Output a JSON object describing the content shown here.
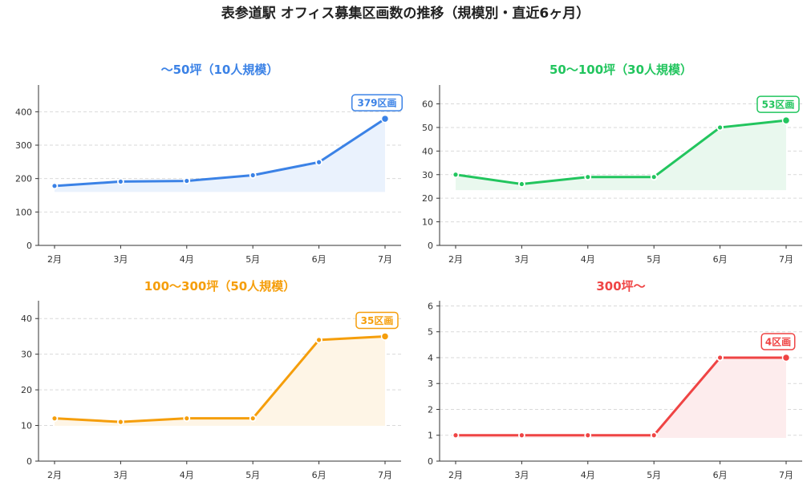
{
  "title": "表参道駅 オフィス募集区画数の推移（規模別・直近6ヶ月）",
  "chart_data": [
    {
      "type": "area",
      "title": "〜50坪（10人規模）",
      "color": "#3b82e6",
      "fill": "#eaf2fd",
      "categories": [
        "2月",
        "3月",
        "4月",
        "5月",
        "6月",
        "7月"
      ],
      "values": [
        178,
        191,
        193,
        210,
        249,
        379
      ],
      "ylim": [
        0,
        480
      ],
      "yticks": [
        0,
        100,
        200,
        300,
        400
      ],
      "area_base": 160,
      "annotation": "379区画"
    },
    {
      "type": "area",
      "title": "50〜100坪（30人規模）",
      "color": "#22c55e",
      "fill": "#e9f8ee",
      "categories": [
        "2月",
        "3月",
        "4月",
        "5月",
        "6月",
        "7月"
      ],
      "values": [
        30,
        26,
        29,
        29,
        50,
        53
      ],
      "ylim": [
        0,
        68
      ],
      "yticks": [
        0,
        10,
        20,
        30,
        40,
        50,
        60
      ],
      "area_base": 23.4,
      "annotation": "53区画"
    },
    {
      "type": "area",
      "title": "100〜300坪（50人規模）",
      "color": "#f59e0b",
      "fill": "#fef5e6",
      "categories": [
        "2月",
        "3月",
        "4月",
        "5月",
        "6月",
        "7月"
      ],
      "values": [
        12,
        11,
        12,
        12,
        34,
        35
      ],
      "ylim": [
        0,
        45
      ],
      "yticks": [
        0,
        10,
        20,
        30,
        40
      ],
      "area_base": 9.9,
      "annotation": "35区画"
    },
    {
      "type": "area",
      "title": "300坪〜",
      "color": "#ef4444",
      "fill": "#fdeced",
      "categories": [
        "2月",
        "3月",
        "4月",
        "5月",
        "6月",
        "7月"
      ],
      "values": [
        1,
        1,
        1,
        1,
        4,
        4
      ],
      "ylim": [
        0,
        6.2
      ],
      "yticks": [
        0,
        1,
        2,
        3,
        4,
        5,
        6
      ],
      "area_base": 0.9,
      "annotation": "4区画"
    }
  ]
}
